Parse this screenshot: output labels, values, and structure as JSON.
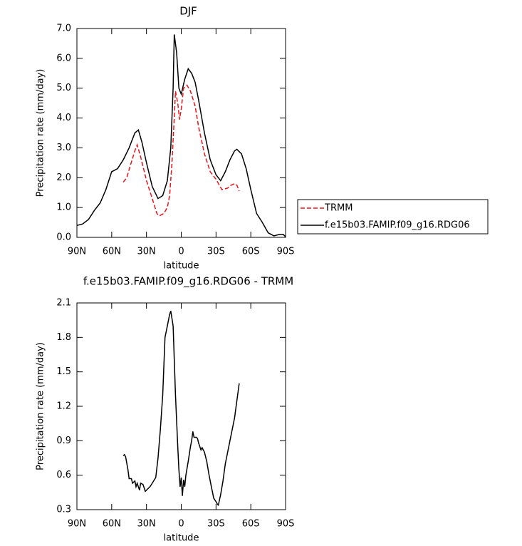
{
  "chart_data": [
    {
      "type": "line",
      "title": "DJF",
      "xlabel": "latitude",
      "ylabel": "Precipitation rate (mm/day)",
      "xlim": [
        90,
        -90
      ],
      "xticks": [
        {
          "value": 90,
          "label": "90N"
        },
        {
          "value": 60,
          "label": "60N"
        },
        {
          "value": 30,
          "label": "30N"
        },
        0,
        {
          "value": -30,
          "label": "30S"
        },
        {
          "value": -60,
          "label": "60S"
        },
        {
          "value": -90,
          "label": "90S"
        }
      ],
      "ylim": [
        0,
        7
      ],
      "yticks": [
        {
          "value": 0,
          "label": "0.0"
        },
        {
          "value": 1,
          "label": "1.0"
        },
        {
          "value": 2,
          "label": "2.0"
        },
        {
          "value": 3,
          "label": "3.0"
        },
        {
          "value": 4,
          "label": "4.0"
        },
        {
          "value": 5,
          "label": "5.0"
        },
        {
          "value": 6,
          "label": "6.0"
        },
        {
          "value": 7,
          "label": "7.0"
        }
      ],
      "legend": "right",
      "series": [
        {
          "name": "TRMM",
          "color": "#e8141b",
          "dash": true,
          "x": [
            50,
            47,
            44,
            40,
            38,
            35,
            30,
            25,
            21,
            19,
            15,
            12,
            10,
            8,
            6,
            5,
            3,
            1.5,
            0,
            -2,
            -5,
            -8,
            -12,
            -15,
            -20,
            -25,
            -30,
            -35,
            -40,
            -43,
            -46,
            -48,
            -50
          ],
          "values": [
            1.85,
            2.0,
            2.4,
            2.9,
            3.1,
            2.7,
            1.9,
            1.3,
            0.8,
            0.72,
            0.8,
            1.0,
            1.4,
            2.5,
            4.0,
            4.9,
            4.5,
            3.95,
            4.3,
            5.0,
            5.1,
            4.9,
            4.4,
            3.7,
            2.8,
            2.2,
            1.95,
            1.6,
            1.65,
            1.75,
            1.8,
            1.75,
            1.55
          ]
        },
        {
          "name": "f.e15b03.FAMIP.f09_g16.RDG06",
          "color": "#000000",
          "dash": false,
          "x": [
            90,
            85,
            80,
            75,
            70,
            65,
            60,
            55,
            50,
            45,
            40,
            37,
            34,
            30,
            25,
            20,
            16,
            12,
            9,
            7,
            6,
            4,
            2,
            0,
            -3,
            -6,
            -9,
            -12,
            -15,
            -20,
            -25,
            -30,
            -34,
            -38,
            -42,
            -46,
            -48,
            -52,
            -56,
            -60,
            -65,
            -70,
            -75,
            -80,
            -85,
            -88,
            -90
          ],
          "values": [
            0.4,
            0.45,
            0.6,
            0.9,
            1.15,
            1.6,
            2.2,
            2.3,
            2.6,
            3.0,
            3.5,
            3.6,
            3.2,
            2.5,
            1.7,
            1.3,
            1.4,
            1.9,
            3.0,
            5.0,
            6.8,
            6.2,
            5.0,
            4.8,
            5.3,
            5.65,
            5.5,
            5.2,
            4.6,
            3.5,
            2.6,
            2.1,
            1.9,
            2.2,
            2.6,
            2.9,
            2.95,
            2.8,
            2.3,
            1.6,
            0.8,
            0.5,
            0.15,
            0.05,
            0.1,
            0.1,
            0.02
          ]
        }
      ]
    },
    {
      "type": "line",
      "title": "f.e15b03.FAMIP.f09_g16.RDG06 - TRMM",
      "xlabel": "latitude",
      "ylabel": "Precipitation rate (mm/day)",
      "xlim": [
        90,
        -90
      ],
      "xticks": [
        {
          "value": 90,
          "label": "90N"
        },
        {
          "value": 60,
          "label": "60N"
        },
        {
          "value": 30,
          "label": "30N"
        },
        0,
        {
          "value": -30,
          "label": "30S"
        },
        {
          "value": -60,
          "label": "60S"
        },
        {
          "value": -90,
          "label": "90S"
        }
      ],
      "ylim": [
        0.3,
        2.1
      ],
      "yticks": [
        0.3,
        0.6,
        0.9,
        1.2,
        1.5,
        1.8,
        2.1
      ],
      "color": "#000000",
      "x": [
        50,
        49,
        48,
        46,
        45,
        43,
        42,
        40,
        39,
        38,
        36,
        35,
        33,
        31,
        29,
        27,
        25,
        22,
        20,
        18,
        16,
        14,
        12,
        10,
        9,
        7,
        5,
        3,
        2,
        1,
        0,
        -1,
        -2,
        -3,
        -4,
        -6,
        -8,
        -9,
        -10,
        -11,
        -13,
        -14,
        -15,
        -16,
        -17,
        -18,
        -20,
        -22,
        -24,
        -26,
        -28,
        -30,
        -31,
        -32,
        -34,
        -36,
        -38,
        -42,
        -46,
        -50
      ],
      "values": [
        0.77,
        0.78,
        0.76,
        0.65,
        0.57,
        0.57,
        0.53,
        0.55,
        0.5,
        0.53,
        0.47,
        0.53,
        0.52,
        0.46,
        0.48,
        0.5,
        0.53,
        0.58,
        0.75,
        1.0,
        1.3,
        1.8,
        1.9,
        2.0,
        2.03,
        1.9,
        1.3,
        0.85,
        0.65,
        0.5,
        0.58,
        0.42,
        0.56,
        0.5,
        0.6,
        0.72,
        0.85,
        0.9,
        0.98,
        0.93,
        0.93,
        0.92,
        0.88,
        0.85,
        0.82,
        0.84,
        0.8,
        0.72,
        0.6,
        0.5,
        0.4,
        0.37,
        0.35,
        0.34,
        0.43,
        0.55,
        0.7,
        0.9,
        1.1,
        1.4
      ]
    }
  ]
}
